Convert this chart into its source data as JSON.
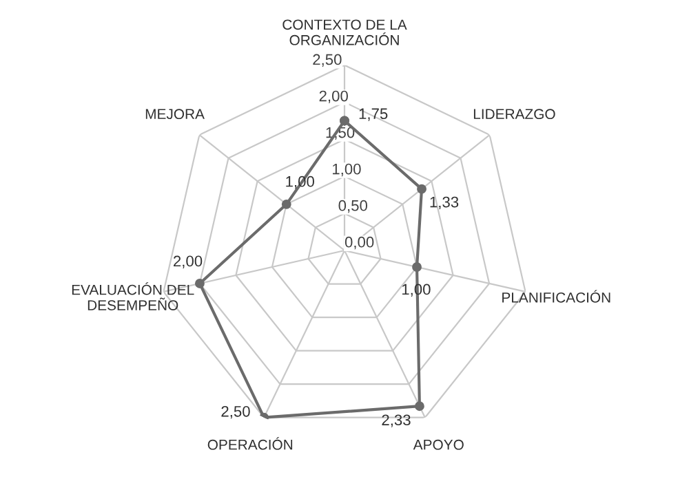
{
  "chart_data": {
    "type": "radar",
    "categories": [
      "CONTEXTO DE LA\nORGANIZACIÓN",
      "LIDERAZGO",
      "PLANIFICACIÓN",
      "APOYO",
      "OPERACIÓN",
      "EVALUACIÓN DEL\nDESEMPEÑO",
      "MEJORA"
    ],
    "series": [
      {
        "color": "#6b6b6b",
        "values": [
          1.75,
          1.33,
          1.0,
          2.33,
          2.5,
          2.0,
          1.0
        ],
        "value_labels": [
          "1,75",
          "1,33",
          "1,00",
          "2,33",
          "2,50",
          "2,00",
          "1,00"
        ]
      }
    ],
    "ylim": [
      0,
      2.5
    ],
    "yticks": [
      {
        "value": 0,
        "label": "0,00"
      },
      {
        "value": 0.5,
        "label": "0,50"
      },
      {
        "value": 1,
        "label": "1,00"
      },
      {
        "value": 1.5,
        "label": "1,50"
      },
      {
        "value": 2,
        "label": "2,00"
      },
      {
        "value": 2.5,
        "label": "2,50"
      }
    ],
    "grid": true,
    "marker": "circle"
  }
}
